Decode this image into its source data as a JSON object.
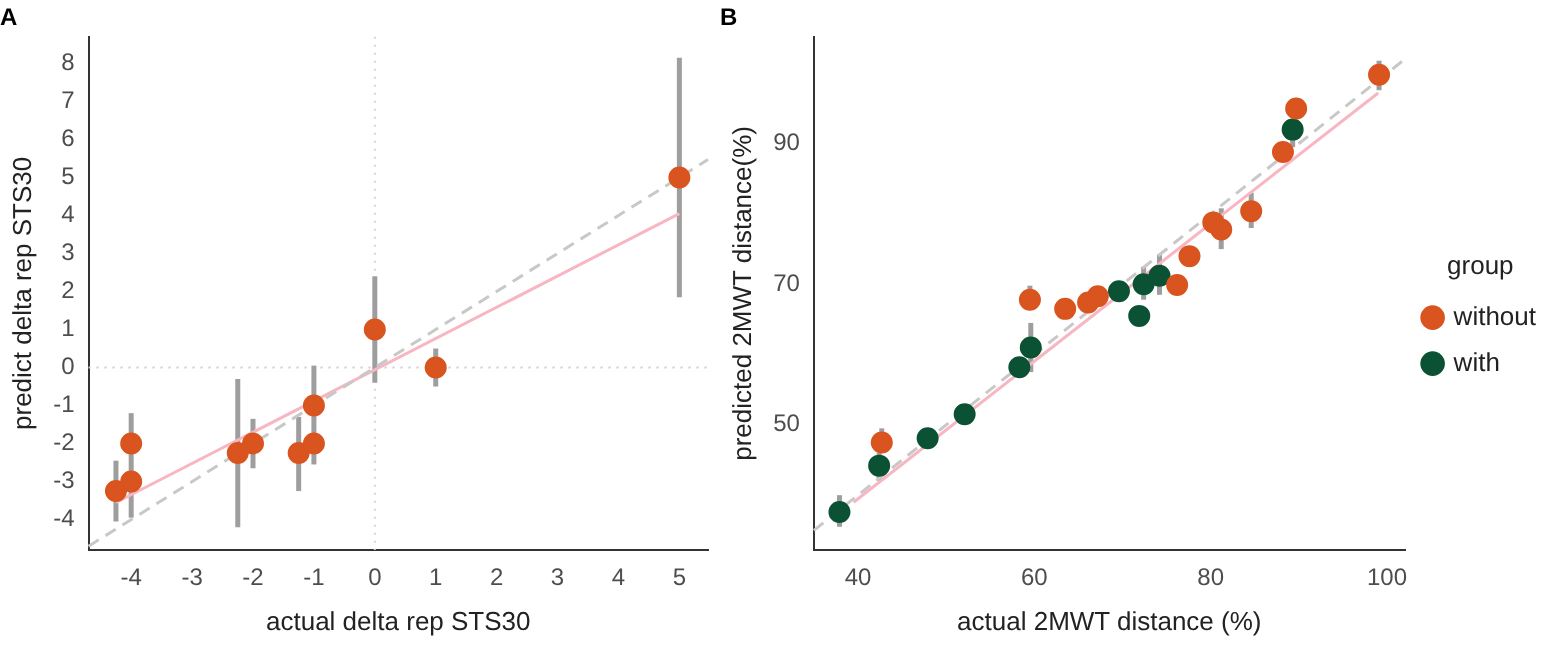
{
  "chart_data": [
    {
      "type": "scatter",
      "title": "A",
      "xlabel": "actual delta rep STS30",
      "ylabel": "predict delta rep STS30",
      "xlim": [
        -4.7,
        5.47
      ],
      "ylim": [
        -4.8,
        8.7
      ],
      "xticks": [
        -4,
        -3,
        -2,
        -1,
        0,
        1,
        2,
        3,
        4,
        5
      ],
      "yticks": [
        -4,
        -3,
        -2,
        -1,
        0,
        1,
        2,
        3,
        4,
        5,
        6,
        7,
        8
      ],
      "grid": false,
      "legend": false,
      "marker": "circle",
      "ref_lines": [
        {
          "axis": "x",
          "value": 0,
          "color": "#d4d4d4",
          "line_style": "dotted"
        },
        {
          "axis": "y",
          "value": 0,
          "color": "#cccccc",
          "line_style": "dotted"
        }
      ],
      "series": [
        {
          "type": "line",
          "color": "#c8c8c8",
          "line_style": "dashed",
          "marker": "none",
          "x": [
            -4.7,
            5.47
          ],
          "values": [
            -4.7,
            5.47
          ]
        },
        {
          "type": "line",
          "color": "#f7b6c2",
          "line_style": "solid",
          "marker": "none",
          "x": [
            -4.25,
            5
          ],
          "values": [
            -3.55,
            4.05
          ]
        },
        {
          "color": "#d9541e",
          "x": [
            -4.25,
            -4,
            -4,
            -2.25,
            -2,
            -1.25,
            -1,
            -1,
            0,
            1,
            5
          ],
          "values": [
            -3.25,
            -3,
            -2,
            -2.25,
            -2,
            -2.25,
            -1,
            -2,
            1,
            0,
            5
          ],
          "errors": [
            [
              -4.05,
              -2.45
            ],
            null,
            [
              -3.95,
              -1.2
            ],
            [
              -4.2,
              -0.3
            ],
            [
              -2.65,
              -1.35
            ],
            [
              -3.25,
              -1.3
            ],
            [
              -2.55,
              0.05
            ],
            null,
            [
              -0.4,
              2.4
            ],
            [
              -0.5,
              0.5
            ],
            [
              1.85,
              8.15
            ]
          ]
        }
      ]
    },
    {
      "type": "scatter",
      "title": "B",
      "xlabel": "actual 2MWT distance (%)",
      "ylabel": "predicted 2MWT distance(%)",
      "legend_title": "group",
      "legend": "right",
      "xlim": [
        35,
        102
      ],
      "ylim": [
        32.2,
        105.2
      ],
      "xticks": [
        40,
        60,
        80,
        100
      ],
      "yticks": [
        50,
        70,
        90
      ],
      "grid": false,
      "marker": "circle",
      "series": [
        {
          "type": "line",
          "color": "#c8c8c8",
          "line_style": "dashed",
          "marker": "none",
          "x": [
            35,
            102
          ],
          "values": [
            35,
            102
          ]
        },
        {
          "type": "line",
          "color": "#f7b6c2",
          "line_style": "solid",
          "marker": "none",
          "x": [
            39.5,
            99
          ],
          "values": [
            39,
            97.2
          ]
        },
        {
          "name": "without",
          "color": "#d9541e",
          "x": [
            42.7,
            59.5,
            63.5,
            66.1,
            67.2,
            76.2,
            77.6,
            80.3,
            81.2,
            84.6,
            88.2,
            89.7,
            99.1
          ],
          "values": [
            47.5,
            67.8,
            66.5,
            67.4,
            68.3,
            69.9,
            74,
            78.8,
            77.8,
            80.4,
            88.8,
            95,
            99.8
          ],
          "errors": [
            [
              46,
              49.5
            ],
            [
              66.5,
              69.8
            ],
            null,
            null,
            null,
            null,
            null,
            null,
            [
              75,
              80.8
            ],
            [
              78,
              83
            ],
            null,
            [
              93.5,
              96.5
            ],
            [
              97.6,
              101.8
            ]
          ]
        },
        {
          "name": "with",
          "color": "#0b5234",
          "x": [
            37.9,
            42.4,
            47.9,
            52.1,
            58.3,
            59.6,
            69.6,
            71.9,
            72.4,
            74.2,
            89.3
          ],
          "values": [
            37.6,
            44.2,
            48.1,
            51.5,
            58.2,
            61,
            69,
            65.5,
            70,
            71.2,
            92
          ],
          "errors": [
            [
              35.5,
              40
            ],
            [
              42,
              46
            ],
            null,
            null,
            null,
            [
              57.5,
              64.5
            ],
            null,
            null,
            [
              67.8,
              72.5
            ],
            [
              68.5,
              74.2
            ],
            [
              89.5,
              93
            ]
          ]
        }
      ]
    }
  ]
}
